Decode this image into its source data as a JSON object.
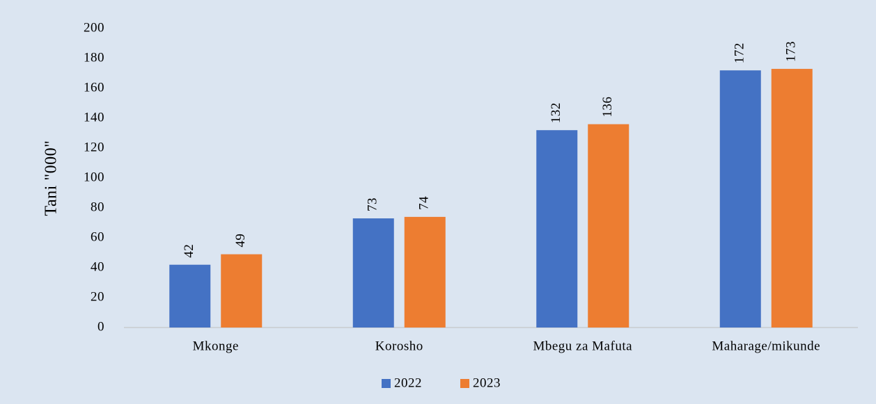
{
  "chart_data": {
    "type": "bar",
    "y_label": "Tani \"000\"",
    "categories": [
      "Mkonge",
      "Korosho",
      "Mbegu za Mafuta",
      "Maharage/mikunde"
    ],
    "series": [
      {
        "name": "2022",
        "color": "#4472c4",
        "values": [
          42,
          73,
          132,
          172
        ]
      },
      {
        "name": "2023",
        "color": "#ed7d31",
        "values": [
          49,
          74,
          136,
          173
        ]
      }
    ],
    "ylim": [
      0,
      200
    ],
    "yticks": [
      0,
      20,
      40,
      60,
      80,
      100,
      120,
      140,
      160,
      180,
      200
    ],
    "grid": false,
    "legend": "bottom"
  }
}
